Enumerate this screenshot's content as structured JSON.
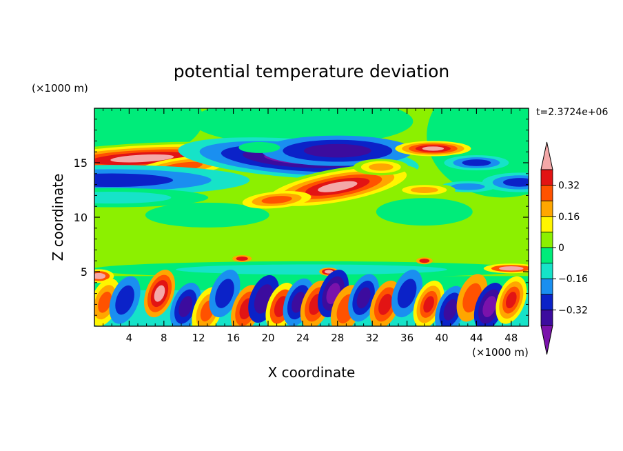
{
  "chart_data": {
    "type": "heatmap",
    "title": "potential temperature deviation",
    "xlabel": "X coordinate",
    "ylabel": "Z coordinate",
    "x_unit": "(×1000 m)",
    "y_unit": "(×1000 m)",
    "time_label": "t=2.3724e+06",
    "xlim": [
      0,
      50
    ],
    "ylim": [
      0,
      20
    ],
    "x_ticks": [
      4,
      8,
      12,
      16,
      20,
      24,
      28,
      32,
      36,
      40,
      44,
      48
    ],
    "y_ticks": [
      5,
      10,
      15
    ],
    "grid": false,
    "colorbar": {
      "position": "right",
      "levels": [
        -0.4,
        -0.32,
        -0.24,
        -0.16,
        -0.08,
        0,
        0.08,
        0.16,
        0.24,
        0.32,
        0.4
      ],
      "colors": [
        "#7a12ab",
        "#3c0c9e",
        "#0b22c8",
        "#1a8ff0",
        "#16e3c8",
        "#00ec7a",
        "#8cf000",
        "#fff500",
        "#ffa600",
        "#ff5200",
        "#e21414",
        "#f4a8a8"
      ],
      "tick_labels": [
        {
          "label": "0.32",
          "value": 0.32
        },
        {
          "label": "0.16",
          "value": 0.16
        },
        {
          "label": "0",
          "value": 0
        },
        {
          "label": "−0.16",
          "value": -0.16
        },
        {
          "label": "−0.32",
          "value": -0.32
        }
      ]
    },
    "features": [
      {
        "x": [
          0,
          13
        ],
        "z": [
          14.6,
          16.2
        ],
        "value": 0.45
      },
      {
        "x": [
          0,
          7
        ],
        "z": [
          11.5,
          14.5
        ],
        "value": -0.24
      },
      {
        "x": [
          12,
          36
        ],
        "z": [
          13.8,
          17.2
        ],
        "value": -0.4
      },
      {
        "x": [
          20,
          34
        ],
        "z": [
          11.2,
          14.0
        ],
        "value": 0.45
      },
      {
        "x": [
          36,
          43
        ],
        "z": [
          15.7,
          16.8
        ],
        "value": 0.45
      },
      {
        "x": [
          0,
          50
        ],
        "z": [
          0,
          3.5
        ],
        "value": "alternating ±0.45 cells"
      }
    ]
  }
}
